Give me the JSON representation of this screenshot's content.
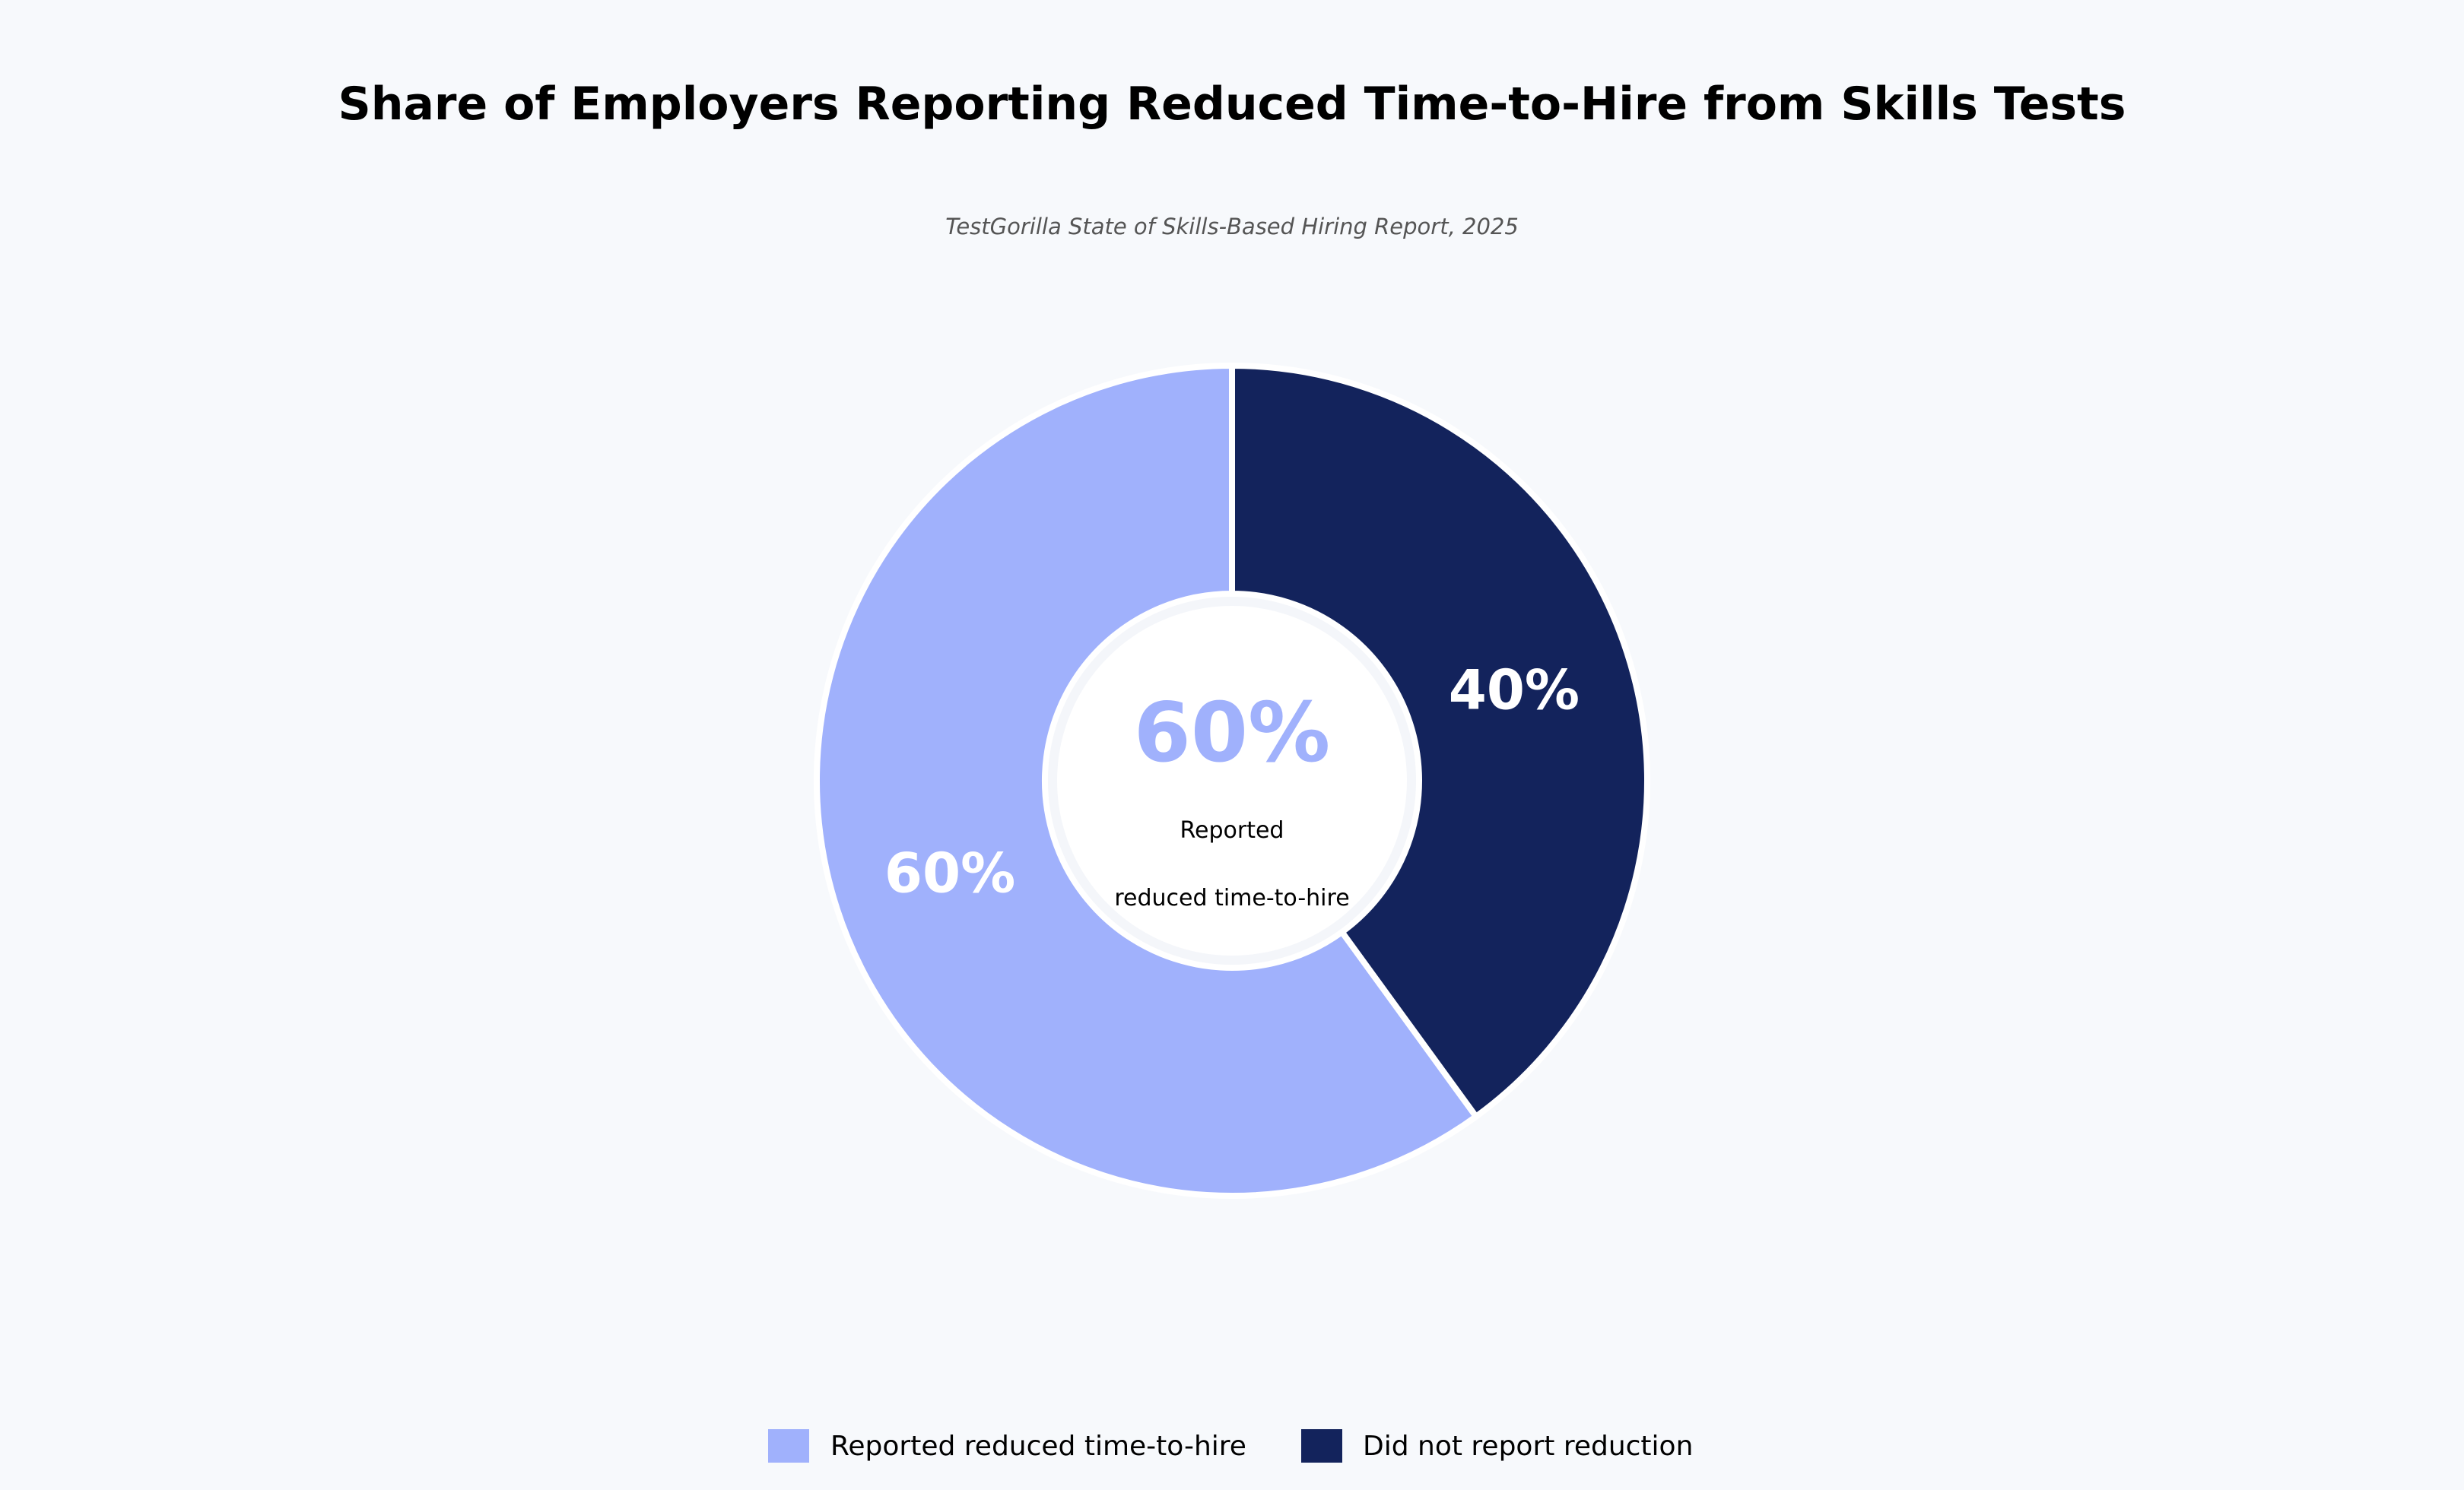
{
  "chart_data": {
    "type": "pie",
    "title": "Share of Employers Reporting Reduced Time-to-Hire from Skills Tests",
    "subtitle": "TestGorilla State of Skills-Based Hiring Report, 2025",
    "categories": [
      "Reported reduced time-to-hire",
      "Did not report reduction"
    ],
    "values": [
      60,
      40
    ],
    "slice_labels": [
      "60%",
      "40%"
    ],
    "colors": [
      "#a0b1fc",
      "#13235c"
    ],
    "center_label": {
      "value": "60%",
      "line1": "Reported",
      "line2": "reduced time-to-hire"
    },
    "donut": true,
    "legend": {
      "placement": "bottom-center",
      "entries": [
        "Reported reduced time-to-hire",
        "Did not report reduction"
      ]
    }
  }
}
